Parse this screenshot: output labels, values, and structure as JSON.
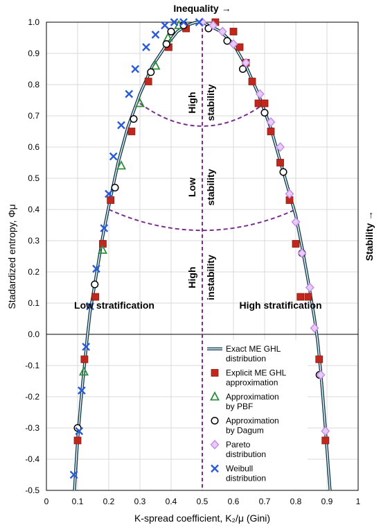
{
  "chart_data": {
    "type": "scatter",
    "xlabel": "K-spread coefficient, K₂/μ (Gini)",
    "ylabel": "Stadardized entropy, Φμ",
    "top_label": "Inequality →",
    "right_label": "Stability →",
    "xlim": [
      0,
      1
    ],
    "ylim": [
      -0.5,
      1.0
    ],
    "x_ticks": [
      "0",
      "0.1",
      "0.2",
      "0.3",
      "0.4",
      "0.5",
      "0.6",
      "0.7",
      "0.8",
      "0.9",
      "1"
    ],
    "y_ticks": [
      "-0.5",
      "-0.4",
      "-0.3",
      "-0.2",
      "-0.1",
      "0.0",
      "0.1",
      "0.2",
      "0.3",
      "0.4",
      "0.5",
      "0.6",
      "0.7",
      "0.8",
      "0.9",
      "1.0"
    ],
    "grid": true,
    "colors": {
      "exact_line": "#1f5f7a",
      "explicit": "#c0281e",
      "pbf": "#2e8b3a",
      "dagum": "#000000",
      "pareto": "#c58be8",
      "weibull": "#2a5bd7",
      "region_lines": "#7b2d8e"
    },
    "annotations": {
      "low_strat": "Low stratification",
      "high_strat": "High stratification",
      "high_stability_a": "High",
      "high_stability_b": "stability",
      "low_stability_a": "Low",
      "low_stability_b": "stability",
      "high_instability_a": "High",
      "high_instability_b": "instability"
    },
    "legend": [
      {
        "name": "Exact ME GHL distribution",
        "lines": [
          "Exact ME GHL",
          "distribution"
        ],
        "marker": "line"
      },
      {
        "name": "Explicit ME GHL approximation",
        "lines": [
          "Explicit ME GHL",
          "approximation"
        ],
        "marker": "square"
      },
      {
        "name": "Approximation by PBF",
        "lines": [
          "Approximation",
          "by PBF"
        ],
        "marker": "triangle"
      },
      {
        "name": "Approximation by Dagum",
        "lines": [
          "Approximation",
          "by Dagum"
        ],
        "marker": "circle"
      },
      {
        "name": "Pareto distribution",
        "lines": [
          "Pareto",
          "distribution"
        ],
        "marker": "diamond"
      },
      {
        "name": "Weibull distribution",
        "lines": [
          "Weibull",
          "distribution"
        ],
        "marker": "x"
      }
    ],
    "series": [
      {
        "name": "Exact ME GHL distribution",
        "kind": "line",
        "x": [
          0.09,
          0.093,
          0.1,
          0.11,
          0.12,
          0.13,
          0.14,
          0.16,
          0.18,
          0.2,
          0.23,
          0.26,
          0.3,
          0.34,
          0.38,
          0.42,
          0.45,
          0.48,
          0.5,
          0.52,
          0.56,
          0.6,
          0.64,
          0.68,
          0.72,
          0.76,
          0.8,
          0.82,
          0.84,
          0.86,
          0.87,
          0.88,
          0.89,
          0.9,
          0.91
        ],
        "y": [
          -0.5,
          -0.45,
          -0.34,
          -0.22,
          -0.12,
          -0.02,
          0.07,
          0.19,
          0.31,
          0.41,
          0.55,
          0.66,
          0.77,
          0.86,
          0.92,
          0.97,
          0.99,
          1.0,
          1.0,
          0.99,
          0.97,
          0.93,
          0.86,
          0.77,
          0.66,
          0.52,
          0.38,
          0.28,
          0.17,
          0.05,
          -0.02,
          -0.12,
          -0.24,
          -0.37,
          -0.5
        ]
      },
      {
        "name": "Explicit ME GHL approximation",
        "kind": "square",
        "x": [
          0.1,
          0.122,
          0.157,
          0.181,
          0.206,
          0.273,
          0.327,
          0.392,
          0.448,
          0.542,
          0.6,
          0.62,
          0.64,
          0.66,
          0.68,
          0.7,
          0.72,
          0.75,
          0.78,
          0.8,
          0.815,
          0.84,
          0.875,
          0.895
        ],
        "x_note": "",
        "y": [
          -0.34,
          -0.08,
          0.12,
          0.29,
          0.43,
          0.65,
          0.81,
          0.92,
          0.98,
          1.0,
          0.97,
          0.92,
          0.87,
          0.81,
          0.74,
          0.74,
          0.65,
          0.55,
          0.43,
          0.29,
          0.12,
          0.12,
          -0.08,
          -0.34
        ]
      },
      {
        "name": "Approximation by PBF",
        "kind": "triangle",
        "x": [
          0.12,
          0.18,
          0.24,
          0.3,
          0.35,
          0.39,
          0.425
        ],
        "y": [
          -0.12,
          0.27,
          0.54,
          0.74,
          0.86,
          0.95,
          0.99
        ]
      },
      {
        "name": "Approximation by Dagum",
        "kind": "circle",
        "x": [
          0.1,
          0.155,
          0.22,
          0.28,
          0.335,
          0.385,
          0.4,
          0.44,
          0.52,
          0.58,
          0.63,
          0.7,
          0.76,
          0.82,
          0.876
        ],
        "y": [
          -0.3,
          0.16,
          0.47,
          0.69,
          0.84,
          0.93,
          0.97,
          0.99,
          0.98,
          0.94,
          0.85,
          0.71,
          0.52,
          0.26,
          -0.13
        ]
      },
      {
        "name": "Pareto distribution",
        "kind": "diamond",
        "x": [
          0.5,
          0.535,
          0.565,
          0.6,
          0.64,
          0.685,
          0.72,
          0.75,
          0.78,
          0.8,
          0.82,
          0.845,
          0.86,
          0.88,
          0.895
        ],
        "y": [
          1.0,
          0.99,
          0.97,
          0.93,
          0.87,
          0.77,
          0.68,
          0.6,
          0.45,
          0.36,
          0.26,
          0.15,
          0.02,
          -0.13,
          -0.31
        ]
      },
      {
        "name": "Weibull distribution",
        "kind": "x",
        "x": [
          0.088,
          0.105,
          0.113,
          0.127,
          0.14,
          0.16,
          0.185,
          0.2,
          0.215,
          0.24,
          0.265,
          0.285,
          0.32,
          0.35,
          0.38,
          0.41,
          0.44,
          0.49
        ],
        "y": [
          -0.45,
          -0.31,
          -0.18,
          -0.04,
          0.09,
          0.21,
          0.34,
          0.45,
          0.57,
          0.67,
          0.77,
          0.85,
          0.92,
          0.96,
          0.99,
          1.0,
          1.0,
          1.0
        ]
      }
    ],
    "region_boundaries": {
      "vertical_x": 0.5,
      "upper_arc": {
        "x": [
          0.3,
          0.5,
          0.7
        ],
        "y": [
          0.74,
          0.667,
          0.74
        ]
      },
      "lower_arc": {
        "x": [
          0.2,
          0.5,
          0.8
        ],
        "y": [
          0.4,
          0.333,
          0.4
        ]
      }
    }
  }
}
